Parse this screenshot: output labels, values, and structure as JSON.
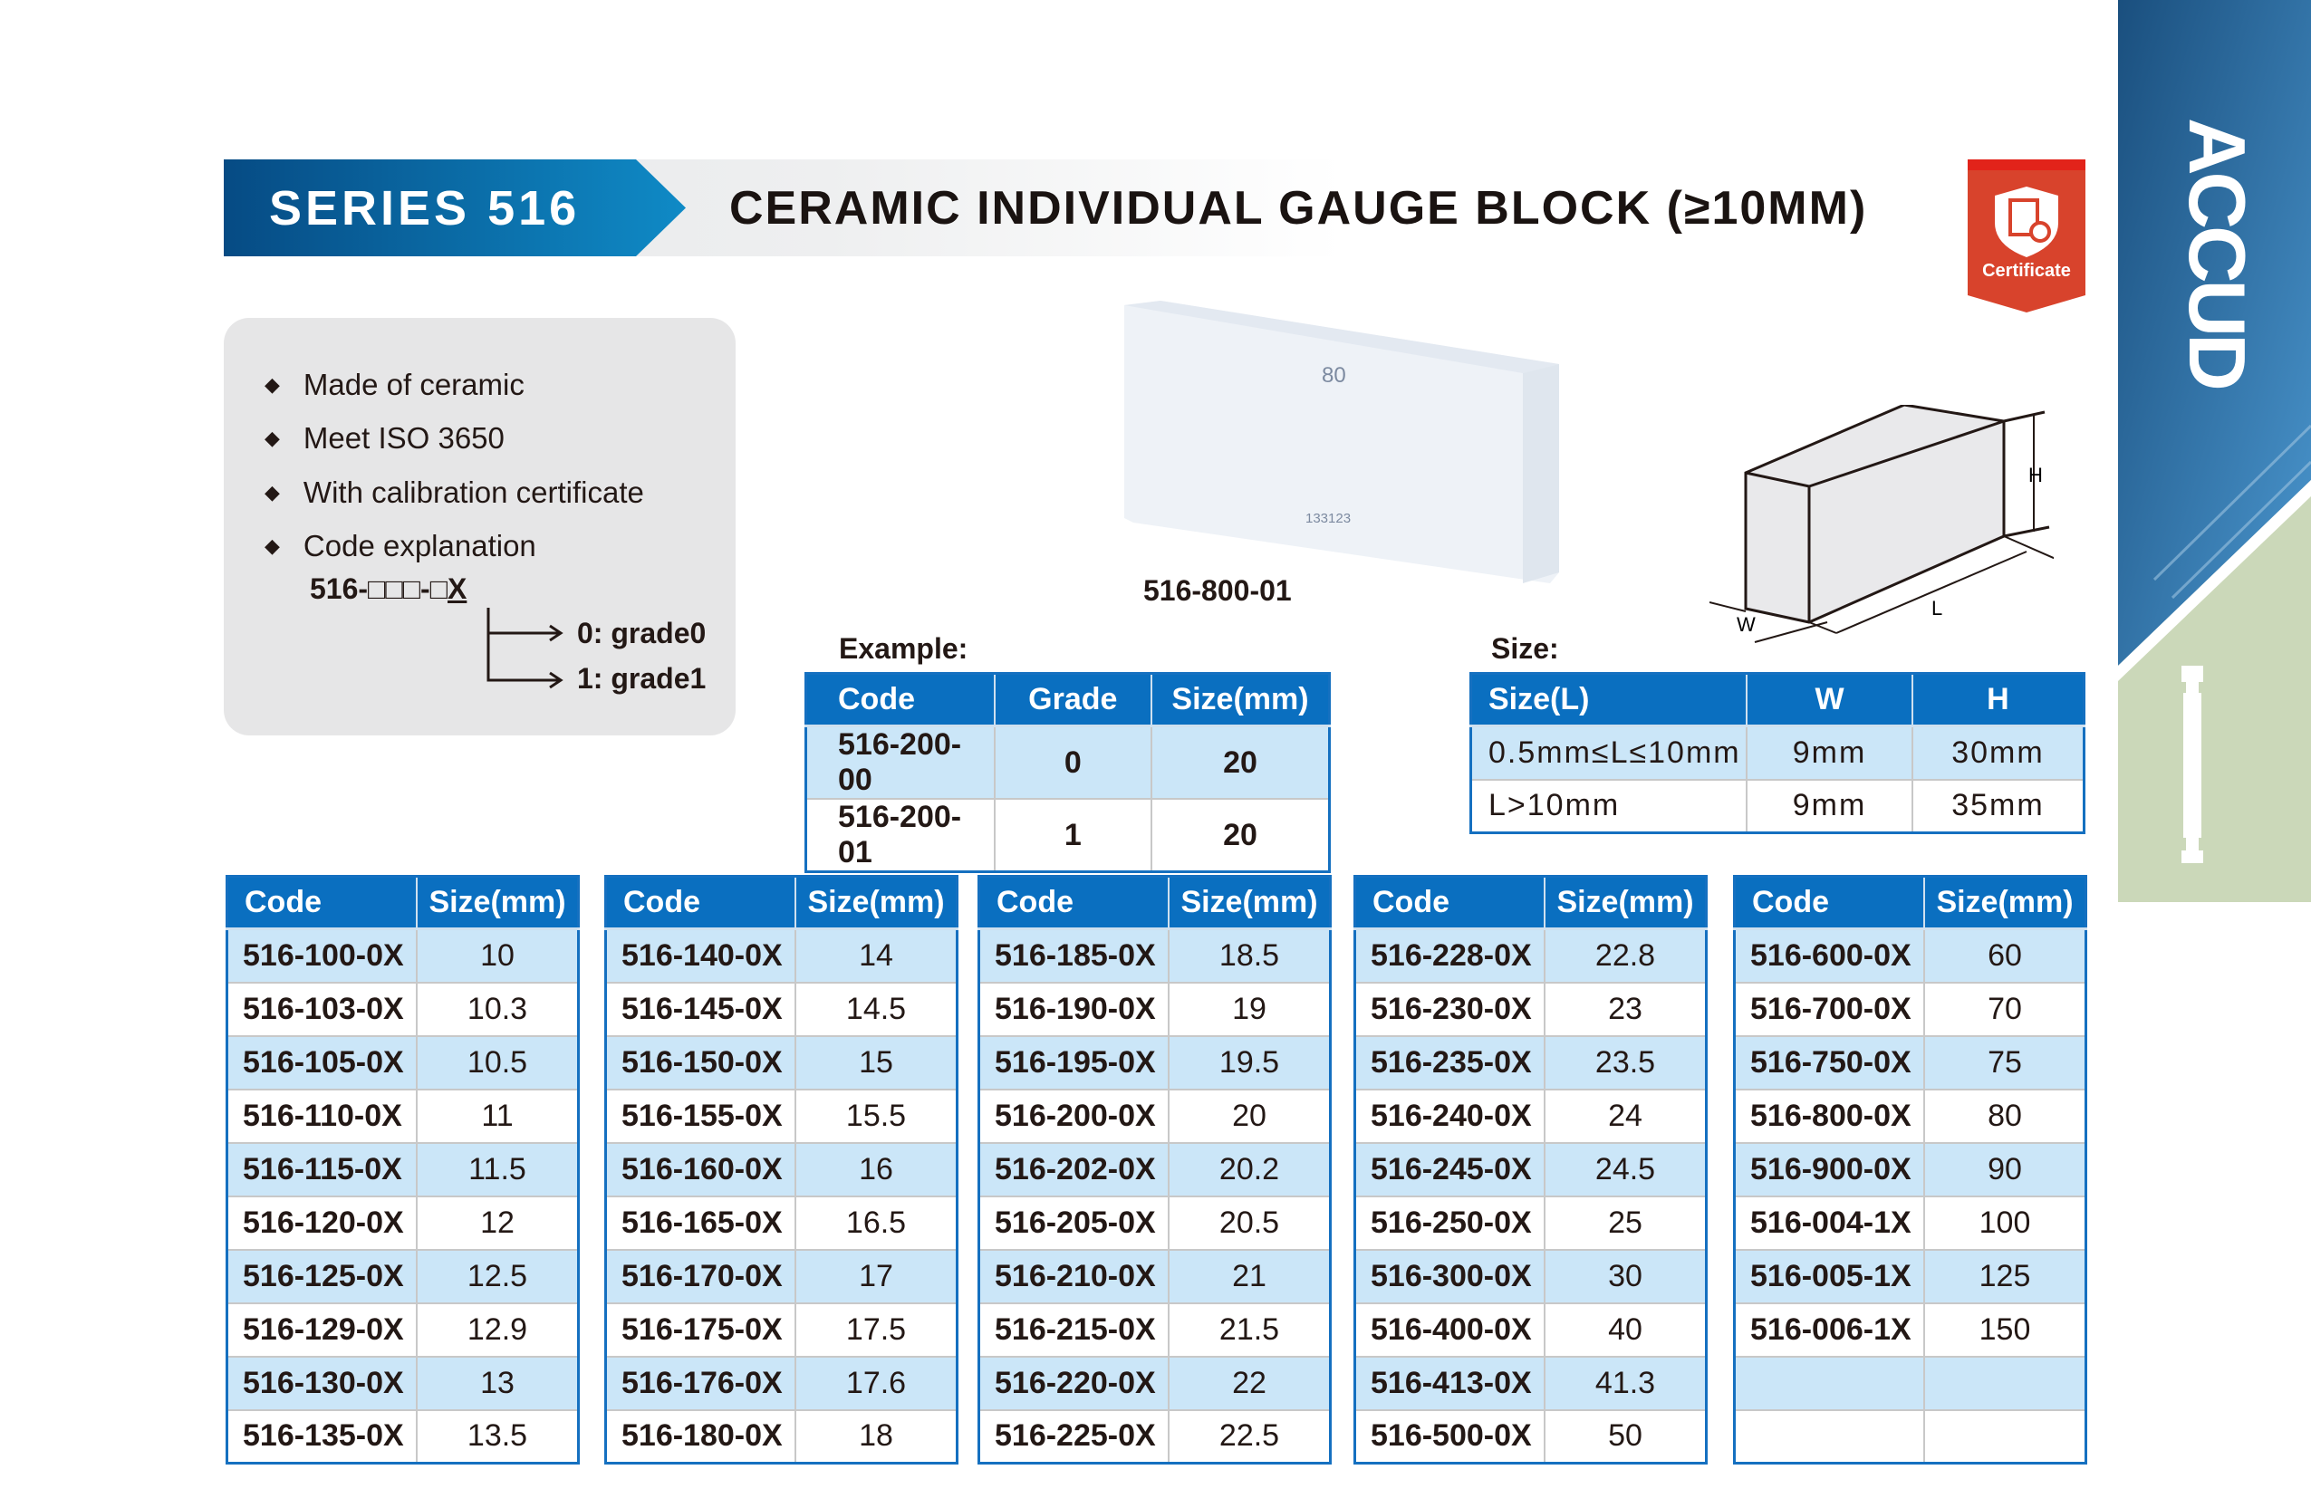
{
  "header": {
    "series": "SERIES 516",
    "title": "CERAMIC INDIVIDUAL GAUGE BLOCK (≥10MM)",
    "badge": "Certificate",
    "brand": "ACCUD"
  },
  "colors": {
    "header_blue": "#0a6fc0",
    "row_alt": "#cbe6f8",
    "badge_red": "#d83a28",
    "panel_green": "#cbd8b9"
  },
  "features": [
    "Made of ceramic",
    "Meet ISO 3650",
    "With calibration certificate",
    "Code explanation"
  ],
  "code_explanation": {
    "pattern": "516-□□□-□",
    "suffix": "X",
    "options": [
      "0: grade0",
      "1: grade1"
    ]
  },
  "photo": {
    "label": "516-800-01",
    "engraved_size": "80",
    "engraved_serial": "133123"
  },
  "diagram": {
    "h": "H",
    "w": "W",
    "l": "L"
  },
  "example": {
    "label": "Example:",
    "headers": [
      "Code",
      "Grade",
      "Size(mm)"
    ],
    "rows": [
      [
        "516-200-00",
        "0",
        "20"
      ],
      [
        "516-200-01",
        "1",
        "20"
      ]
    ]
  },
  "size": {
    "label": "Size:",
    "headers": [
      "Size(L)",
      "W",
      "H"
    ],
    "rows": [
      [
        "0.5mm≤L≤10mm",
        "9mm",
        "30mm"
      ],
      [
        "L>10mm",
        "9mm",
        "35mm"
      ]
    ]
  },
  "catalog": {
    "headers": [
      "Code",
      "Size(mm)"
    ],
    "tables": [
      [
        [
          "516-100-0X",
          "10"
        ],
        [
          "516-103-0X",
          "10.3"
        ],
        [
          "516-105-0X",
          "10.5"
        ],
        [
          "516-110-0X",
          "11"
        ],
        [
          "516-115-0X",
          "11.5"
        ],
        [
          "516-120-0X",
          "12"
        ],
        [
          "516-125-0X",
          "12.5"
        ],
        [
          "516-129-0X",
          "12.9"
        ],
        [
          "516-130-0X",
          "13"
        ],
        [
          "516-135-0X",
          "13.5"
        ]
      ],
      [
        [
          "516-140-0X",
          "14"
        ],
        [
          "516-145-0X",
          "14.5"
        ],
        [
          "516-150-0X",
          "15"
        ],
        [
          "516-155-0X",
          "15.5"
        ],
        [
          "516-160-0X",
          "16"
        ],
        [
          "516-165-0X",
          "16.5"
        ],
        [
          "516-170-0X",
          "17"
        ],
        [
          "516-175-0X",
          "17.5"
        ],
        [
          "516-176-0X",
          "17.6"
        ],
        [
          "516-180-0X",
          "18"
        ]
      ],
      [
        [
          "516-185-0X",
          "18.5"
        ],
        [
          "516-190-0X",
          "19"
        ],
        [
          "516-195-0X",
          "19.5"
        ],
        [
          "516-200-0X",
          "20"
        ],
        [
          "516-202-0X",
          "20.2"
        ],
        [
          "516-205-0X",
          "20.5"
        ],
        [
          "516-210-0X",
          "21"
        ],
        [
          "516-215-0X",
          "21.5"
        ],
        [
          "516-220-0X",
          "22"
        ],
        [
          "516-225-0X",
          "22.5"
        ]
      ],
      [
        [
          "516-228-0X",
          "22.8"
        ],
        [
          "516-230-0X",
          "23"
        ],
        [
          "516-235-0X",
          "23.5"
        ],
        [
          "516-240-0X",
          "24"
        ],
        [
          "516-245-0X",
          "24.5"
        ],
        [
          "516-250-0X",
          "25"
        ],
        [
          "516-300-0X",
          "30"
        ],
        [
          "516-400-0X",
          "40"
        ],
        [
          "516-413-0X",
          "41.3"
        ],
        [
          "516-500-0X",
          "50"
        ]
      ],
      [
        [
          "516-600-0X",
          "60"
        ],
        [
          "516-700-0X",
          "70"
        ],
        [
          "516-750-0X",
          "75"
        ],
        [
          "516-800-0X",
          "80"
        ],
        [
          "516-900-0X",
          "90"
        ],
        [
          "516-004-1X",
          "100"
        ],
        [
          "516-005-1X",
          "125"
        ],
        [
          "516-006-1X",
          "150"
        ],
        [
          "",
          ""
        ],
        [
          "",
          ""
        ]
      ]
    ]
  }
}
